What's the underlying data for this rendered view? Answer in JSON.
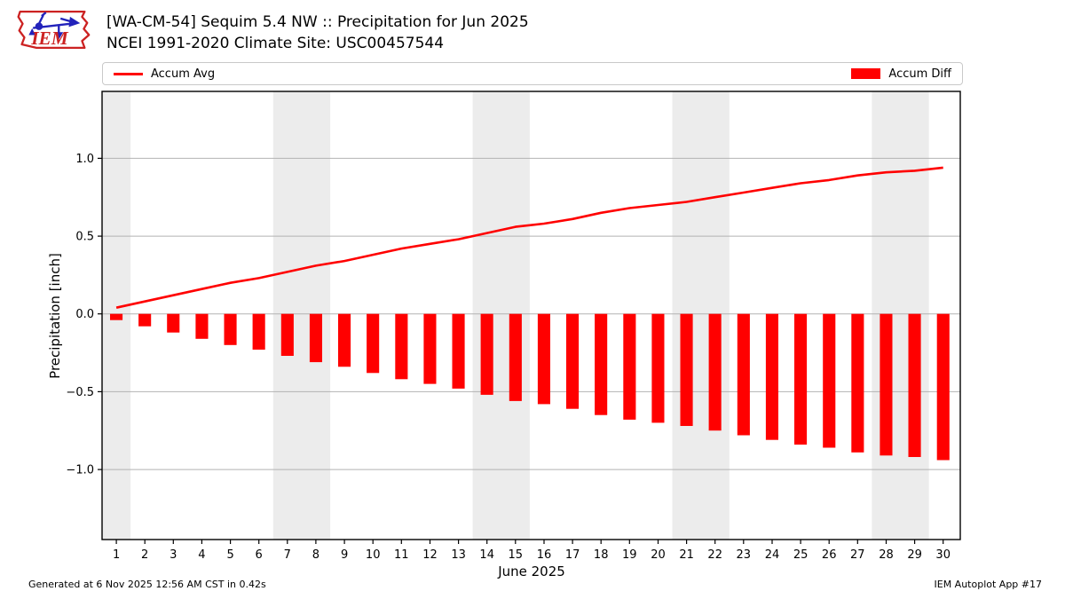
{
  "header": {
    "title_line1": "[WA-CM-54] Sequim 5.4 NW :: Precipitation for Jun 2025",
    "title_line2": "NCEI 1991-2020 Climate Site: USC00457544",
    "logo_text": "IEM"
  },
  "legend": {
    "items": [
      {
        "label": "Accum Avg",
        "swatch": "line",
        "color": "#ff0000"
      },
      {
        "label": "Accum Diff",
        "swatch": "bar",
        "color": "#ff0000"
      }
    ]
  },
  "footer": {
    "generated": "Generated at 6 Nov 2025 12:56 AM CST in 0.42s",
    "app": "IEM Autoplot App #17"
  },
  "chart_data": {
    "type": "bar",
    "title": "",
    "xlabel": "June 2025",
    "ylabel": "Precipitation [inch]",
    "x": [
      1,
      2,
      3,
      4,
      5,
      6,
      7,
      8,
      9,
      10,
      11,
      12,
      13,
      14,
      15,
      16,
      17,
      18,
      19,
      20,
      21,
      22,
      23,
      24,
      25,
      26,
      27,
      28,
      29,
      30
    ],
    "series": [
      {
        "name": "Accum Avg",
        "type": "line",
        "color": "#ff0000",
        "values": [
          0.04,
          0.08,
          0.12,
          0.16,
          0.2,
          0.23,
          0.27,
          0.31,
          0.34,
          0.38,
          0.42,
          0.45,
          0.48,
          0.52,
          0.56,
          0.58,
          0.61,
          0.65,
          0.68,
          0.7,
          0.72,
          0.75,
          0.78,
          0.81,
          0.84,
          0.86,
          0.89,
          0.91,
          0.92,
          0.94
        ]
      },
      {
        "name": "Accum Diff",
        "type": "bar",
        "color": "#ff0000",
        "values": [
          -0.04,
          -0.08,
          -0.12,
          -0.16,
          -0.2,
          -0.23,
          -0.27,
          -0.31,
          -0.34,
          -0.38,
          -0.42,
          -0.45,
          -0.48,
          -0.52,
          -0.56,
          -0.58,
          -0.61,
          -0.65,
          -0.68,
          -0.7,
          -0.72,
          -0.75,
          -0.78,
          -0.81,
          -0.84,
          -0.86,
          -0.89,
          -0.91,
          -0.92,
          -0.94
        ]
      }
    ],
    "xlim": [
      0.5,
      30.6
    ],
    "ylim": [
      -1.45,
      1.43
    ],
    "yticks": [
      -1.0,
      -0.5,
      0.0,
      0.5,
      1.0
    ],
    "grid": true,
    "legend_position": "top",
    "weekend_bands": [
      [
        0.5,
        1.5
      ],
      [
        6.5,
        8.5
      ],
      [
        13.5,
        15.5
      ],
      [
        20.5,
        22.5
      ],
      [
        27.5,
        29.5
      ]
    ],
    "band_color": "#ececec",
    "grid_color": "#b2b2b2"
  }
}
